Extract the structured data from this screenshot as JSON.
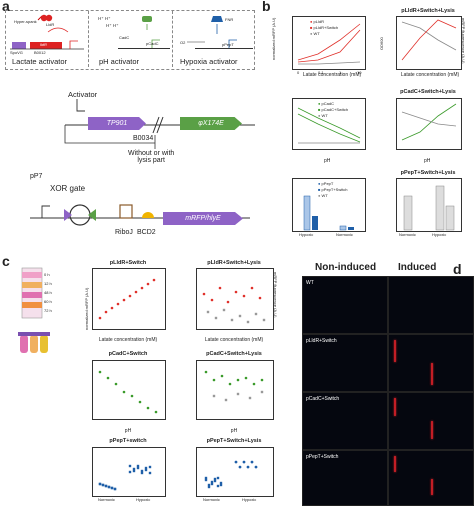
{
  "panel_labels": {
    "a": "a",
    "b": "b",
    "c": "c",
    "d": "d"
  },
  "a": {
    "activators": [
      {
        "label": "Lactate activator",
        "parts": [
          "Hyper-spank",
          "LldR",
          "SpoVG",
          "B0012",
          "lldR"
        ]
      },
      {
        "label": "pH activator",
        "parts": [
          "CadC",
          "pCadC"
        ]
      },
      {
        "label": "Hypoxia activator",
        "parts": [
          "FNR",
          "pPepT",
          "O2"
        ]
      }
    ],
    "activator_text": "Activator",
    "construct": {
      "left_gene": "TP901",
      "right_gene": "φX174E",
      "terminator": "B0034",
      "lysis_text": "Without or with\nlysis part"
    },
    "xor": {
      "promoter": "pP7",
      "gate": "XOR gate",
      "output": "mRFP/hlyE",
      "riboj": "RiboJ",
      "bcd2": "BCD2"
    }
  },
  "b": {
    "ylabel_left": "normalized mRFP (A.U)",
    "ylabel_od": "OD600",
    "ylabel_right": "mRFP fluorescence (A.U)",
    "plots": [
      {
        "legend": [
          "pLldR",
          "pLldR+Switch",
          "WT"
        ],
        "xlabel": "Latate concentration (mM)",
        "ticks": [
          "0",
          "0.1",
          "1",
          "10"
        ]
      },
      {
        "title": "pLldR+Switch+Lysis",
        "xlabel": "Latate concentration (mM)",
        "ticks": [
          "0",
          "0.1",
          "1",
          "10"
        ]
      },
      {
        "legend": [
          "pCadC",
          "pCadC+Switch",
          "WT"
        ],
        "xlabel": "pH",
        "ticks": [
          "6.3",
          "6.8",
          "6.3",
          "7.3"
        ]
      },
      {
        "title": "pCadC+Switch+Lysis",
        "xlabel": "pH",
        "ticks": [
          "7.3",
          "6.8",
          "6.3",
          "5.8"
        ]
      },
      {
        "legend": [
          "pPepT",
          "pPepT+Switch",
          "WT"
        ],
        "ticks": [
          "Hypoxic",
          "Normoxic"
        ]
      },
      {
        "title": "pPepT+Switch+Lysis",
        "ticks": [
          "Normoxic",
          "Hypoxic"
        ]
      }
    ]
  },
  "c": {
    "times": [
      "0 h",
      "12 h",
      "48 h",
      "60 h",
      "72 h"
    ],
    "ylabel": "normalized mRFP (A.U)",
    "ylabel_od": "OD600",
    "ylabel_right": "mRFP fluorescence (A.U)",
    "plots": [
      {
        "title": "pLldR+Switch",
        "xlabel": "Latate concentration (mM)",
        "xticks": [
          "0",
          "2",
          "4",
          "6",
          "8"
        ]
      },
      {
        "title": "pLldR+Switch+Lysis",
        "xlabel": "Latate concentration (mM)",
        "xticks": [
          "0",
          "2",
          "4",
          "6",
          "8"
        ]
      },
      {
        "title": "pCadC+Switch",
        "xlabel": "pH",
        "xticks": [
          "5",
          "6",
          "7",
          "8"
        ]
      },
      {
        "title": "pCadC+Switch+Lysis",
        "xlabel": "pH",
        "xticks": [
          "5",
          "6",
          "7",
          "8"
        ]
      },
      {
        "title": "pPepT+switch",
        "xticks": [
          "Normoxic",
          "Hypoxic"
        ]
      },
      {
        "title": "pPepT+Switch+Lysis",
        "xticks": [
          "Normoxic",
          "Hypoxic"
        ]
      }
    ]
  },
  "d": {
    "col_headers": [
      "Non-induced",
      "Induced"
    ],
    "rows": [
      "WT",
      "pLldR+Switch",
      "pCadC+Switch",
      "pPepT+Switch"
    ]
  },
  "colors": {
    "red": "#e0302a",
    "green": "#3a9a2a",
    "blue": "#1f5fa8",
    "grey": "#888888",
    "purple": "#7a4fb0",
    "gene_purple": "#8e63c6",
    "gene_green": "#5aa046"
  }
}
